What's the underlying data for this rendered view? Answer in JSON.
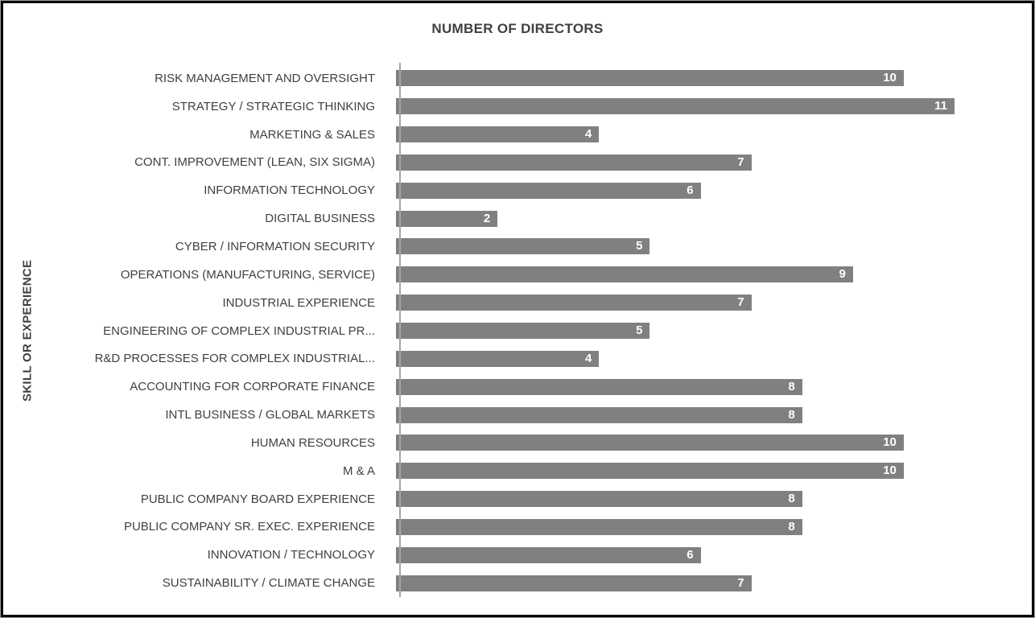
{
  "chart": {
    "title": "NUMBER OF DIRECTORS",
    "y_axis_label": "SKILL OR EXPERIENCE",
    "bar_color": "#808080",
    "axis_line_color": "#a6a6a6",
    "label_text_color": "#404040",
    "value_text_color": "#ffffff",
    "frame_border_color": "#000000"
  },
  "chart_data": {
    "type": "bar",
    "orientation": "horizontal",
    "title": "NUMBER OF DIRECTORS",
    "xlabel": "",
    "ylabel": "SKILL OR EXPERIENCE",
    "xlim": [
      0,
      11
    ],
    "grid": false,
    "legend": false,
    "value_labels": "inside-end",
    "categories": [
      "RISK MANAGEMENT AND OVERSIGHT",
      "STRATEGY / STRATEGIC THINKING",
      "MARKETING & SALES",
      "CONT. IMPROVEMENT (LEAN, SIX SIGMA)",
      "INFORMATION TECHNOLOGY",
      "DIGITAL BUSINESS",
      "CYBER / INFORMATION SECURITY",
      "OPERATIONS (MANUFACTURING, SERVICE)",
      "INDUSTRIAL EXPERIENCE",
      "ENGINEERING OF COMPLEX INDUSTRIAL PR...",
      "R&D PROCESSES FOR COMPLEX INDUSTRIAL...",
      "ACCOUNTING FOR CORPORATE FINANCE",
      "INTL BUSINESS / GLOBAL MARKETS",
      "HUMAN RESOURCES",
      "M & A",
      "PUBLIC COMPANY BOARD EXPERIENCE",
      "PUBLIC COMPANY SR. EXEC. EXPERIENCE",
      "INNOVATION / TECHNOLOGY",
      "SUSTAINABILITY / CLIMATE CHANGE"
    ],
    "values": [
      10,
      11,
      4,
      7,
      6,
      2,
      5,
      9,
      7,
      5,
      4,
      8,
      8,
      10,
      10,
      8,
      8,
      6,
      7
    ]
  }
}
